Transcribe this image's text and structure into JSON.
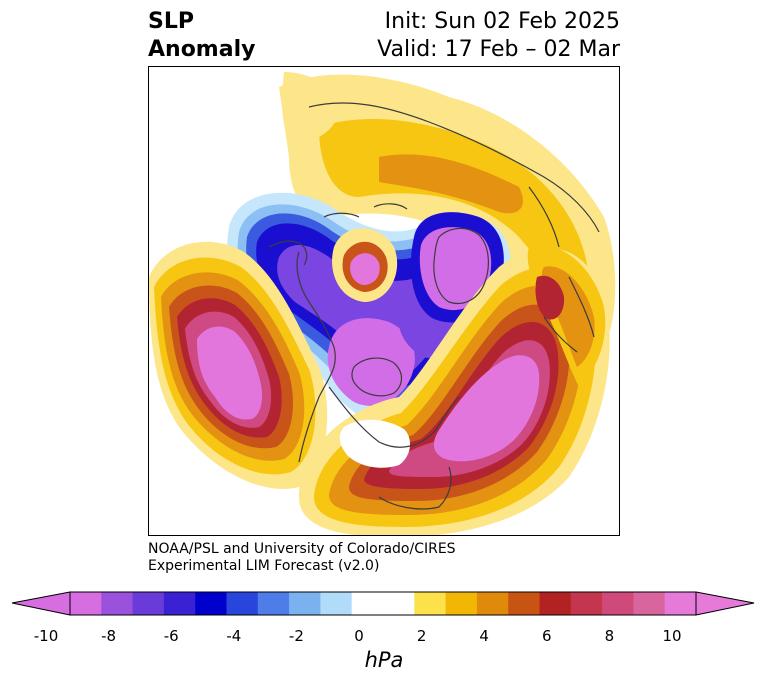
{
  "header": {
    "title_line1": "SLP",
    "title_line2": "Anomaly",
    "init_text": "Init: Sun 02 Feb 2025",
    "valid_text": "Valid: 17 Feb – 02 Mar"
  },
  "credit": {
    "line1": "NOAA/PSL and University of Colorado/CIRES",
    "line2": "Experimental LIM Forecast (v2.0)"
  },
  "colorbar": {
    "unit": "hPa",
    "min": -10,
    "max": 10,
    "tick_labels": [
      "-10",
      "-8",
      "-6",
      "-4",
      "-2",
      "0",
      "2",
      "4",
      "6",
      "8",
      "10"
    ],
    "colors": [
      "#d66de0",
      "#9a52dc",
      "#6a3bd8",
      "#3a22d4",
      "#0000cc",
      "#2846dc",
      "#4e7ce8",
      "#7ab2f0",
      "#b0dcfa",
      "#ffffff",
      "#ffffff",
      "#fce14a",
      "#f2b705",
      "#e08a0c",
      "#c85414",
      "#b22222",
      "#c4364e",
      "#cf4a7a",
      "#d9659f",
      "#e57ad8"
    ],
    "extend_low_color": "#d66de0",
    "extend_high_color": "#e57ad8"
  },
  "map": {
    "colors": {
      "neg_extreme": "#d26de8",
      "neg_strong": "#7a45e0",
      "neg_deep": "#1a0fd0",
      "neg_mid": "#3a5ae0",
      "neg_light": "#8cc0f4",
      "neg_pale": "#c5e6fb",
      "pos_pale": "#fde68a",
      "pos_light": "#f6c612",
      "pos_mid": "#e39212",
      "pos_strong": "#c8541a",
      "pos_deep": "#b32433",
      "pos_max": "#cf4a82",
      "pos_extreme": "#e276dc",
      "coast": "#3c3c3c"
    }
  }
}
